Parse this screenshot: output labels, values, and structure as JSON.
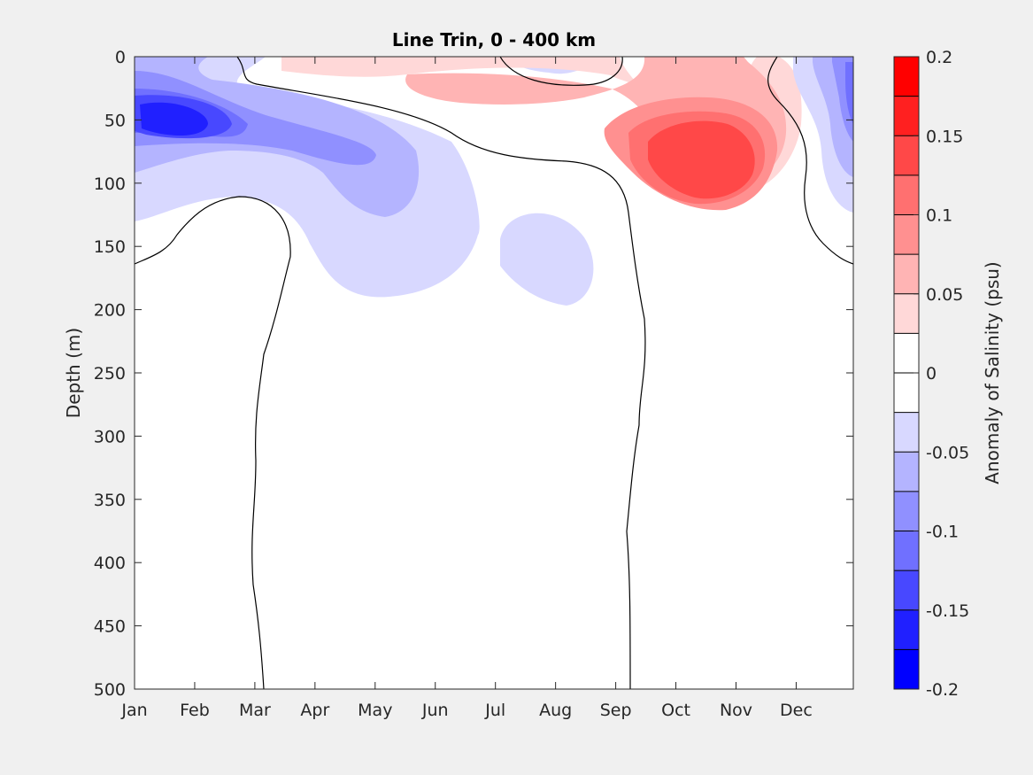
{
  "chart_data": {
    "type": "heatmap",
    "subtype": "filled-contour",
    "title": "Line Trin, 0 - 400 km",
    "xlabel": "",
    "ylabel": "Depth (m)",
    "colorbar_label": "Anomaly of Salinity (psu)",
    "x_ticks": [
      "Jan",
      "Feb",
      "Mar",
      "Apr",
      "May",
      "Jun",
      "Jul",
      "Aug",
      "Sep",
      "Oct",
      "Nov",
      "Dec"
    ],
    "xlim_months": [
      1,
      12.95
    ],
    "y_ticks": [
      0,
      50,
      100,
      150,
      200,
      250,
      300,
      350,
      400,
      450,
      500
    ],
    "ylim": [
      0,
      500
    ],
    "y_reversed": true,
    "colorbar": {
      "range": [
        -0.2,
        0.2
      ],
      "step": 0.025,
      "ticks": [
        0.2,
        0.15,
        0.1,
        0.05,
        0,
        -0.05,
        -0.1,
        -0.15,
        -0.2
      ],
      "tick_labels": [
        "0.2",
        "0.15",
        "0.1",
        "0.05",
        "0",
        "-0.05",
        "-0.1",
        "-0.15",
        "-0.2"
      ],
      "level_colors": [
        "#ff0000",
        "#ff2020",
        "#ff4848",
        "#ff7070",
        "#ff9090",
        "#ffb4b4",
        "#ffd8d8",
        "#ffffff",
        "#ffffff",
        "#d8d8ff",
        "#b4b4ff",
        "#9090ff",
        "#7070ff",
        "#4848ff",
        "#2020ff",
        "#0000ff"
      ]
    },
    "features": [
      {
        "name": "surface-negative-core",
        "sign": "negative",
        "center_month": 1.6,
        "center_depth": 50,
        "min_value": -0.15
      },
      {
        "name": "subsurface-negative-lobe",
        "sign": "negative",
        "center_month": 4.5,
        "center_depth": 150,
        "min_value": -0.05
      },
      {
        "name": "august-negative-blob",
        "sign": "negative",
        "center_month": 8.1,
        "center_depth": 155,
        "min_value": -0.05
      },
      {
        "name": "autumn-positive-core",
        "sign": "positive",
        "center_month": 10.5,
        "center_depth": 75,
        "max_value": 0.15
      },
      {
        "name": "december-negative",
        "sign": "negative",
        "center_month": 12.8,
        "center_depth": 50,
        "min_value": -0.125
      }
    ]
  }
}
